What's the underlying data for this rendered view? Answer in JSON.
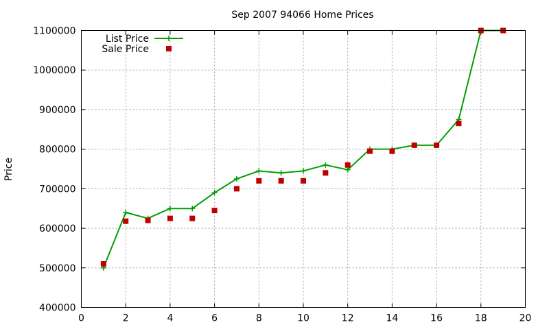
{
  "chart_data": {
    "type": "line",
    "title": "Sep 2007 94066 Home Prices",
    "xlabel": "",
    "ylabel": "Price",
    "xlim": [
      0,
      20
    ],
    "ylim": [
      400000,
      1100000
    ],
    "xticks": [
      0,
      2,
      4,
      6,
      8,
      10,
      12,
      14,
      16,
      18,
      20
    ],
    "yticks": [
      400000,
      500000,
      600000,
      700000,
      800000,
      900000,
      1000000,
      1100000
    ],
    "grid": true,
    "legend_position": "top-left",
    "series": [
      {
        "name": "List Price",
        "style": "line-with-plus-markers",
        "color": "#00a000",
        "x": [
          1,
          2,
          3,
          4,
          5,
          6,
          7,
          8,
          9,
          10,
          11,
          12,
          13,
          14,
          15,
          16,
          17,
          18,
          19
        ],
        "y": [
          500000,
          640000,
          625000,
          650000,
          650000,
          690000,
          725000,
          745000,
          740000,
          745000,
          760000,
          748000,
          800000,
          800000,
          810000,
          810000,
          875000,
          1100000,
          1100000
        ]
      },
      {
        "name": "Sale Price",
        "style": "square-markers",
        "color": "#c00000",
        "x": [
          1,
          2,
          3,
          4,
          5,
          6,
          7,
          8,
          9,
          10,
          11,
          12,
          13,
          14,
          15,
          16,
          17,
          18,
          19
        ],
        "y": [
          510000,
          618000,
          620000,
          625000,
          625000,
          645000,
          700000,
          720000,
          720000,
          720000,
          740000,
          760000,
          795000,
          795000,
          810000,
          810000,
          865000,
          1100000,
          1100000
        ]
      }
    ]
  }
}
